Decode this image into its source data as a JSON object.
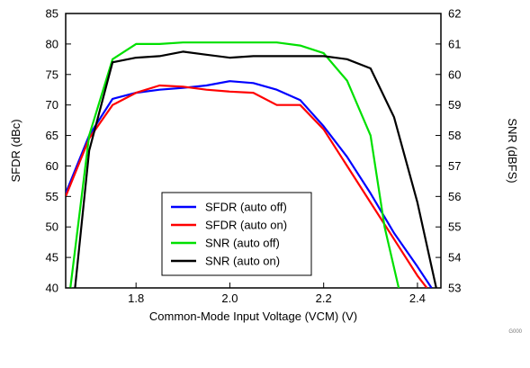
{
  "chart_data": {
    "type": "line",
    "xlabel": "Common-Mode Input Voltage (VCM) (V)",
    "ylabel_left": "SFDR (dBc)",
    "ylabel_right": "SNR (dBFS)",
    "xlim": [
      1.65,
      2.45
    ],
    "ylim_left": [
      40,
      85
    ],
    "ylim_right": [
      53,
      62
    ],
    "x_ticks": [
      1.8,
      2.0,
      2.2,
      2.4
    ],
    "x_tick_labels": [
      "1.8",
      "2.0",
      "2.2",
      "2.4"
    ],
    "y_left_ticks": [
      40,
      45,
      50,
      55,
      60,
      65,
      70,
      75,
      80,
      85
    ],
    "y_right_ticks": [
      53,
      54,
      55,
      56,
      57,
      58,
      59,
      60,
      61,
      62
    ],
    "grid": false,
    "legend_position": "lower-center",
    "series": [
      {
        "name": "SFDR (auto off)",
        "color": "#0000ff",
        "axis": "left",
        "points": [
          [
            1.65,
            55.5
          ],
          [
            1.7,
            65.0
          ],
          [
            1.75,
            71.0
          ],
          [
            1.8,
            72.0
          ],
          [
            1.85,
            72.5
          ],
          [
            1.9,
            72.8
          ],
          [
            1.95,
            73.2
          ],
          [
            2.0,
            73.9
          ],
          [
            2.05,
            73.6
          ],
          [
            2.1,
            72.5
          ],
          [
            2.15,
            70.8
          ],
          [
            2.2,
            66.5
          ],
          [
            2.25,
            61.5
          ],
          [
            2.3,
            55.5
          ],
          [
            2.35,
            49.0
          ],
          [
            2.4,
            43.5
          ],
          [
            2.43,
            40.0
          ]
        ]
      },
      {
        "name": "SFDR (auto on)",
        "color": "#ff0000",
        "axis": "left",
        "points": [
          [
            1.65,
            55.0
          ],
          [
            1.7,
            64.5
          ],
          [
            1.75,
            70.0
          ],
          [
            1.8,
            72.0
          ],
          [
            1.85,
            73.2
          ],
          [
            1.9,
            73.0
          ],
          [
            1.95,
            72.5
          ],
          [
            2.0,
            72.2
          ],
          [
            2.05,
            72.0
          ],
          [
            2.1,
            70.0
          ],
          [
            2.15,
            70.0
          ],
          [
            2.2,
            66.0
          ],
          [
            2.25,
            60.0
          ],
          [
            2.3,
            54.0
          ],
          [
            2.35,
            48.0
          ],
          [
            2.4,
            42.0
          ],
          [
            2.42,
            40.0
          ]
        ]
      },
      {
        "name": "SNR (auto off)",
        "color": "#00e000",
        "axis": "right",
        "points": [
          [
            1.66,
            53.0
          ],
          [
            1.7,
            58.0
          ],
          [
            1.75,
            60.5
          ],
          [
            1.8,
            61.0
          ],
          [
            1.85,
            61.0
          ],
          [
            1.9,
            61.05
          ],
          [
            2.0,
            61.05
          ],
          [
            2.1,
            61.05
          ],
          [
            2.15,
            60.95
          ],
          [
            2.2,
            60.7
          ],
          [
            2.25,
            59.8
          ],
          [
            2.3,
            58.0
          ],
          [
            2.33,
            55.0
          ],
          [
            2.36,
            53.0
          ]
        ]
      },
      {
        "name": "SNR (auto on)",
        "color": "#000000",
        "axis": "right",
        "points": [
          [
            1.67,
            53.0
          ],
          [
            1.7,
            57.5
          ],
          [
            1.75,
            60.4
          ],
          [
            1.8,
            60.55
          ],
          [
            1.85,
            60.6
          ],
          [
            1.9,
            60.75
          ],
          [
            1.95,
            60.65
          ],
          [
            2.0,
            60.55
          ],
          [
            2.05,
            60.6
          ],
          [
            2.1,
            60.6
          ],
          [
            2.15,
            60.6
          ],
          [
            2.2,
            60.6
          ],
          [
            2.25,
            60.5
          ],
          [
            2.3,
            60.2
          ],
          [
            2.35,
            58.6
          ],
          [
            2.4,
            55.8
          ],
          [
            2.44,
            53.0
          ]
        ]
      }
    ]
  },
  "figure_code": "G000"
}
